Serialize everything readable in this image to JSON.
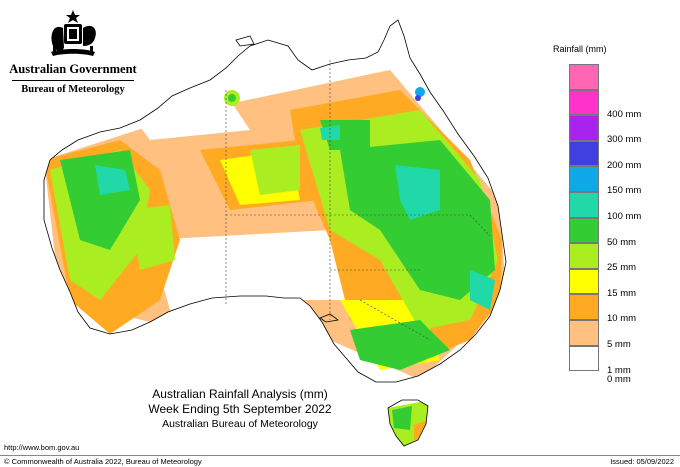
{
  "header": {
    "government": "Australian Government",
    "bureau": "Bureau of Meteorology"
  },
  "legend": {
    "title": "Rainfall (mm)",
    "items": [
      {
        "label": "",
        "color": "#ff66b3"
      },
      {
        "label": "400 mm",
        "color": "#ff33cc"
      },
      {
        "label": "300 mm",
        "color": "#aa22ee"
      },
      {
        "label": "200 mm",
        "color": "#4040e0"
      },
      {
        "label": "150 mm",
        "color": "#10a8e8"
      },
      {
        "label": "100 mm",
        "color": "#20d8a8"
      },
      {
        "label": "50 mm",
        "color": "#33cc33"
      },
      {
        "label": "25 mm",
        "color": "#aaee22"
      },
      {
        "label": "15 mm",
        "color": "#ffff00"
      },
      {
        "label": "10 mm",
        "color": "#ffaa22"
      },
      {
        "label": "5 mm",
        "color": "#ffc080"
      },
      {
        "label": "1 mm",
        "color": "#ffffff"
      },
      {
        "label": "0 mm",
        "color": ""
      }
    ]
  },
  "map_title": {
    "line1": "Australian Rainfall Analysis (mm)",
    "line2": "Week Ending 5th September 2022",
    "line3": "Australian Bureau of Meteorology"
  },
  "footer": {
    "url": "http://www.bom.gov.au",
    "copyright": "© Commonwealth of Australia 2022, Bureau of Meteorology",
    "issued": "Issued: 05/09/2022"
  }
}
